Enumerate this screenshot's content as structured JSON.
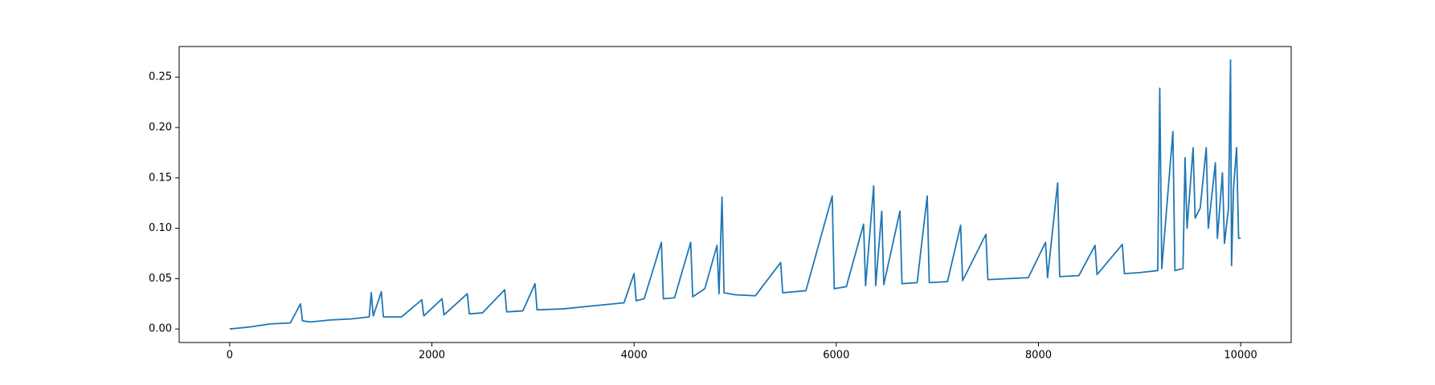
{
  "chart_data": {
    "type": "line",
    "color": "#1f77b4",
    "x": [
      0,
      200,
      400,
      600,
      700,
      720,
      800,
      1000,
      1200,
      1380,
      1400,
      1420,
      1500,
      1520,
      1700,
      1900,
      1920,
      2100,
      2120,
      2350,
      2370,
      2500,
      2720,
      2740,
      2900,
      3020,
      3040,
      3300,
      3500,
      3700,
      3900,
      4000,
      4020,
      4100,
      4270,
      4290,
      4400,
      4560,
      4580,
      4700,
      4820,
      4840,
      4870,
      4890,
      5000,
      5200,
      5450,
      5470,
      5700,
      5960,
      5980,
      6100,
      6270,
      6290,
      6370,
      6390,
      6450,
      6470,
      6630,
      6650,
      6800,
      6900,
      6920,
      7100,
      7230,
      7250,
      7480,
      7500,
      7700,
      7900,
      8070,
      8090,
      8190,
      8210,
      8400,
      8560,
      8580,
      8830,
      8850,
      9000,
      9180,
      9200,
      9220,
      9330,
      9350,
      9430,
      9450,
      9470,
      9530,
      9550,
      9600,
      9660,
      9680,
      9750,
      9770,
      9820,
      9840,
      9880,
      9900,
      9910,
      9930,
      9960,
      9980,
      10000
    ],
    "values": [
      0,
      0.002,
      0.005,
      0.006,
      0.025,
      0.008,
      0.007,
      0.009,
      0.01,
      0.012,
      0.036,
      0.013,
      0.037,
      0.012,
      0.012,
      0.029,
      0.013,
      0.03,
      0.014,
      0.035,
      0.015,
      0.016,
      0.039,
      0.017,
      0.018,
      0.045,
      0.019,
      0.02,
      0.022,
      0.024,
      0.026,
      0.055,
      0.028,
      0.03,
      0.086,
      0.03,
      0.031,
      0.086,
      0.032,
      0.04,
      0.083,
      0.035,
      0.131,
      0.036,
      0.034,
      0.033,
      0.066,
      0.036,
      0.038,
      0.132,
      0.04,
      0.042,
      0.104,
      0.043,
      0.142,
      0.043,
      0.117,
      0.044,
      0.117,
      0.045,
      0.046,
      0.132,
      0.046,
      0.047,
      0.103,
      0.048,
      0.094,
      0.049,
      0.05,
      0.051,
      0.086,
      0.051,
      0.145,
      0.052,
      0.053,
      0.083,
      0.054,
      0.084,
      0.055,
      0.056,
      0.058,
      0.239,
      0.06,
      0.196,
      0.058,
      0.06,
      0.17,
      0.1,
      0.18,
      0.11,
      0.12,
      0.18,
      0.1,
      0.165,
      0.09,
      0.155,
      0.085,
      0.12,
      0.267,
      0.063,
      0.14,
      0.18,
      0.09,
      0.09
    ],
    "xlim": [
      -500,
      10500
    ],
    "xticks": [
      0,
      2000,
      4000,
      6000,
      8000,
      10000
    ],
    "ylim": [
      -0.0134,
      0.2804
    ],
    "yticks": [
      {
        "value": 0,
        "label": "0.00"
      },
      {
        "value": 0.05,
        "label": "0.05"
      },
      {
        "value": 0.1,
        "label": "0.10"
      },
      {
        "value": 0.15,
        "label": "0.15"
      },
      {
        "value": 0.2,
        "label": "0.20"
      },
      {
        "value": 0.25,
        "label": "0.25"
      }
    ],
    "grid": false
  }
}
